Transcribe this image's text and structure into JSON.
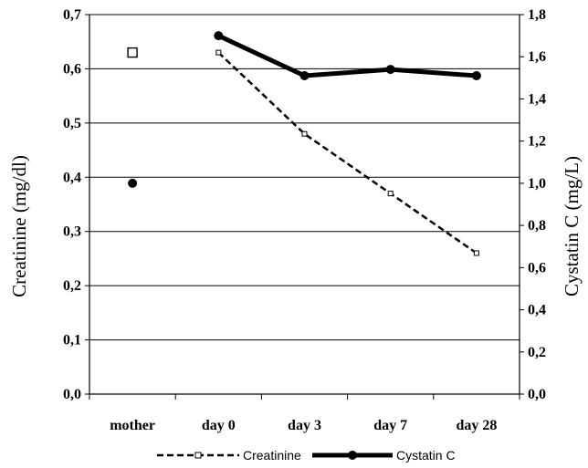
{
  "chart_data": {
    "type": "line",
    "categories": [
      "mother",
      "day 0",
      "day 3",
      "day 7",
      "day 28"
    ],
    "series": [
      {
        "name": "Creatinine",
        "axis": "left",
        "values": [
          0.63,
          0.63,
          0.48,
          0.37,
          0.26
        ],
        "line_style": "dashed",
        "marker": "open-square",
        "color": "#000000"
      },
      {
        "name": "Cystatin C",
        "axis": "right",
        "values": [
          1.0,
          1.7,
          1.51,
          1.54,
          1.51
        ],
        "line_style": "solid-thick",
        "marker": "filled-circle",
        "color": "#000000"
      }
    ],
    "ylabel": "Creatinine (mg/dl)",
    "y2label": "Cystatin C (mg/L)",
    "ylim": [
      0,
      0.7
    ],
    "y2lim": [
      0,
      1.8
    ],
    "yticks": [
      "0,0",
      "0,1",
      "0,2",
      "0,3",
      "0,4",
      "0,5",
      "0,6",
      "0,7"
    ],
    "y2ticks": [
      "0,0",
      "0,2",
      "0,4",
      "0,6",
      "0,8",
      "1,0",
      "1,2",
      "1,4",
      "1,6",
      "1,8"
    ],
    "grid": "horizontal",
    "legend_position": "bottom"
  }
}
